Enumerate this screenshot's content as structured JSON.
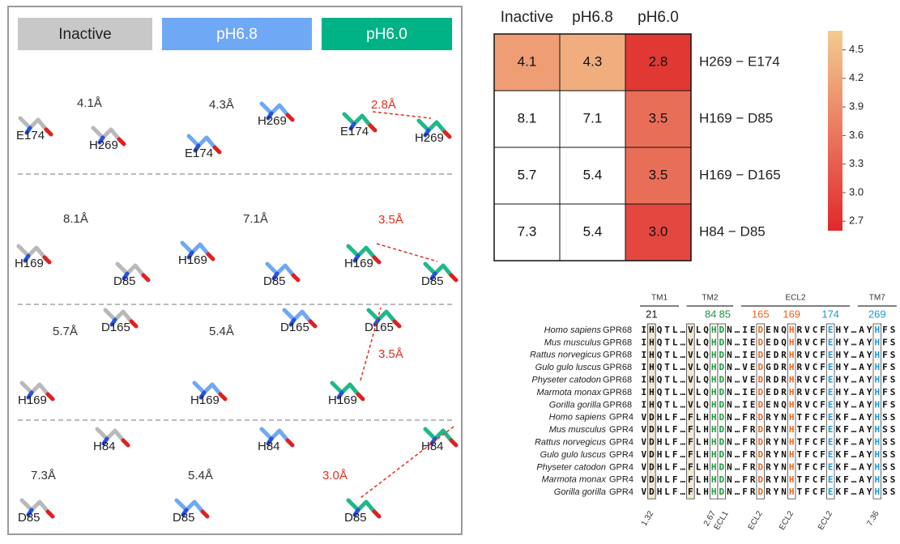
{
  "panels": {
    "columns": [
      "Inactive",
      "pH6.8",
      "pH6.0"
    ],
    "rows": [
      {
        "cells": [
          {
            "distance": "4.1Å",
            "residues": [
              "E174",
              "H269"
            ]
          },
          {
            "distance": "4.3Å",
            "residues": [
              "E174",
              "H269"
            ]
          },
          {
            "distance": "2.8Å",
            "residues": [
              "E174",
              "H269"
            ]
          }
        ]
      },
      {
        "cells": [
          {
            "distance": "8.1Å",
            "residues": [
              "H169",
              "D85"
            ]
          },
          {
            "distance": "7.1Å",
            "residues": [
              "H169",
              "D85"
            ]
          },
          {
            "distance": "3.5Å",
            "residues": [
              "H169",
              "D85"
            ]
          }
        ]
      },
      {
        "cells": [
          {
            "distance": "5.7Å",
            "residues": [
              "H169",
              "D165"
            ]
          },
          {
            "distance": "5.4Å",
            "residues": [
              "H169",
              "D165"
            ]
          },
          {
            "distance": "3.5Å",
            "residues": [
              "H169",
              "D165"
            ]
          }
        ]
      },
      {
        "cells": [
          {
            "distance": "7.3Å",
            "residues": [
              "H84",
              "D85"
            ]
          },
          {
            "distance": "5.4Å",
            "residues": [
              "H84",
              "D85"
            ]
          },
          {
            "distance": "3.0Å",
            "residues": [
              "H84",
              "D85"
            ]
          }
        ]
      }
    ]
  },
  "chart_data": {
    "type": "heatmap",
    "x": [
      "Inactive",
      "pH6.8",
      "pH6.0"
    ],
    "y": [
      "H269 − E174",
      "H169 − D85",
      "H169 − D165",
      "H84 − D85"
    ],
    "values": [
      [
        4.1,
        4.3,
        2.8
      ],
      [
        8.1,
        7.1,
        3.5
      ],
      [
        5.7,
        5.4,
        3.5
      ],
      [
        7.3,
        5.4,
        3.0
      ]
    ],
    "value_labels": [
      [
        "4.1",
        "4.3",
        "2.8"
      ],
      [
        "8.1",
        "7.1",
        "3.5"
      ],
      [
        "5.7",
        "5.4",
        "3.5"
      ],
      [
        "7.3",
        "5.4",
        "3.0"
      ]
    ],
    "colormap": [
      "#e0282a",
      "#eb7a60",
      "#f3cc90"
    ],
    "zlim": [
      2.6,
      4.7
    ],
    "zticks": [
      4.5,
      4.2,
      3.9,
      3.6,
      3.3,
      {
        "value": 3.0,
        "label": "3.0"
      },
      2.7
    ]
  },
  "alignment": {
    "regions": [
      "TM1",
      "TM2",
      "ECL2",
      "TM7"
    ],
    "positions": [
      21,
      84,
      85,
      165,
      169,
      174,
      269
    ],
    "rows": [
      {
        "species": "Homo sapiens",
        "gene": "GPR68",
        "sequence": "IHQTL…VLQHDN…IEDENQHRVCFEHY…AYHFS"
      },
      {
        "species": "Mus musculus",
        "gene": "GPR68",
        "sequence": "IHQTL…VLQHDN…IEDEDQHRVCFEHY…AYHFS"
      },
      {
        "species": "Rattus norvegicus",
        "gene": "GPR68",
        "sequence": "IHQTL…VLQHDN…IEDEDRHRVCFEHY…AYHFS"
      },
      {
        "species": "Gulo gulo luscus",
        "gene": "GPR68",
        "sequence": "IHQTL…VLQHDN…VEDGDRHRVCFEHY…AYHFS"
      },
      {
        "species": "Physeter catodon",
        "gene": "GPR68",
        "sequence": "IHQTL…VLQHDN…VEDRDRHRVCFEHY…AYHFS"
      },
      {
        "species": "Marmota monax",
        "gene": "GPR68",
        "sequence": "IHQTL…VLQHDN…IEDEDRHRVCFEHY…AYHFS"
      },
      {
        "species": "Gorilla gorilla",
        "gene": "GPR68",
        "sequence": "IHQTL…VLQHDN…IEDENQHRVCFEHY…AYHFS"
      },
      {
        "species": "Homo sapiens",
        "gene": "GPR4",
        "sequence": "VDHLF…FLHHDN…FRDRYNHTFCFEKF…AYHSS"
      },
      {
        "species": "Mus musculus",
        "gene": "GPR4",
        "sequence": "VDHLF…FLHHDN…FRDRYNHTFCFEKF…AYHSS"
      },
      {
        "species": "Rattus norvegicus",
        "gene": "GPR4",
        "sequence": "VDHLF…FLHHDN…FRDRYNHTFCFEKF…AYHSS"
      },
      {
        "species": "Gulo gulo luscus",
        "gene": "GPR4",
        "sequence": "VDHLF…FLHHDN…FRDRYNHTFCFEKF…AYHSS"
      },
      {
        "species": "Physeter catodon",
        "gene": "GPR4",
        "sequence": "VDHLF…FLHHDN…FRDRYNHTFCFEKF…AYHSS"
      },
      {
        "species": "Marmota monax",
        "gene": "GPR4",
        "sequence": "VDHLF…FLHHDN…FRDRYNHTFCFEKF…AYHSS"
      },
      {
        "species": "Gorilla gorilla",
        "gene": "GPR4",
        "sequence": "VDHLF…FLHHDN…FRDRYNHTFCFEKF…AYHSS"
      }
    ],
    "footnotes": [
      "1.32",
      "2.67",
      "ECL1",
      "ECL2",
      "ECL2",
      "ECL2",
      "7.36"
    ]
  }
}
